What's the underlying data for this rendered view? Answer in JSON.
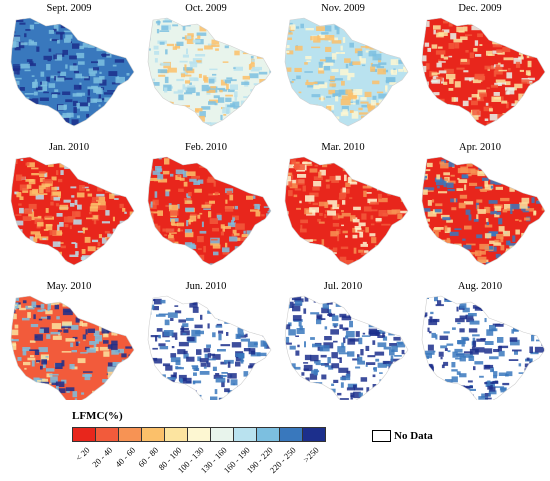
{
  "figure": {
    "panels": [
      {
        "title": "Sept. 2009",
        "dominant_classes": [
          "220 - 250",
          ">250",
          "190 - 220"
        ]
      },
      {
        "title": "Oct. 2009",
        "dominant_classes": [
          "130 - 160",
          "160 - 190",
          "190 - 220",
          "60 - 80"
        ]
      },
      {
        "title": "Nov. 2009",
        "dominant_classes": [
          "160 - 190",
          "100 - 130",
          "60 - 80",
          "190 - 220"
        ]
      },
      {
        "title": "Dec. 2009",
        "dominant_classes": [
          "< 20",
          "20 - 40",
          "80 - 100",
          "130 - 160"
        ]
      },
      {
        "title": "Jan. 2010",
        "dominant_classes": [
          "< 20",
          "20 - 40",
          "60 - 80",
          "160 - 190"
        ]
      },
      {
        "title": "Feb. 2010",
        "dominant_classes": [
          "< 20",
          "20 - 40",
          "60 - 80",
          "190 - 220"
        ]
      },
      {
        "title": "Mar. 2010",
        "dominant_classes": [
          "< 20",
          "20 - 40",
          "40 - 60",
          "100 - 130"
        ]
      },
      {
        "title": "Apr. 2010",
        "dominant_classes": [
          "< 20",
          "40 - 60",
          "80 - 100",
          "220 - 250"
        ]
      },
      {
        "title": "May. 2010",
        "dominant_classes": [
          "20 - 40",
          "80 - 100",
          "190 - 220",
          ">250"
        ]
      },
      {
        "title": "Jun. 2010",
        "dominant_classes": [
          "No Data",
          "220 - 250",
          ">250"
        ]
      },
      {
        "title": "Jul. 2010",
        "dominant_classes": [
          "No Data",
          ">250",
          "220 - 250"
        ]
      },
      {
        "title": "Aug. 2010",
        "dominant_classes": [
          "No Data",
          ">250",
          "220 - 250"
        ]
      }
    ],
    "legend": {
      "title": "LFMC(%)",
      "classes": [
        {
          "label": "< 20",
          "color": "#e8261c"
        },
        {
          "label": "20 - 40",
          "color": "#f25b3b"
        },
        {
          "label": "40 - 60",
          "color": "#f79354"
        },
        {
          "label": "60 - 80",
          "color": "#fbc06a"
        },
        {
          "label": "80 - 100",
          "color": "#fce4a0"
        },
        {
          "label": "100 - 130",
          "color": "#fdf7d2"
        },
        {
          "label": "130 - 160",
          "color": "#e8f4ec"
        },
        {
          "label": "160 - 190",
          "color": "#b9e2ef"
        },
        {
          "label": "190 - 220",
          "color": "#7cbfe0"
        },
        {
          "label": "220 - 250",
          "color": "#3978bd"
        },
        {
          "label": ">250",
          "color": "#1c2f8c"
        }
      ],
      "no_data_label": "No Data",
      "no_data_color": "#ffffff"
    }
  }
}
